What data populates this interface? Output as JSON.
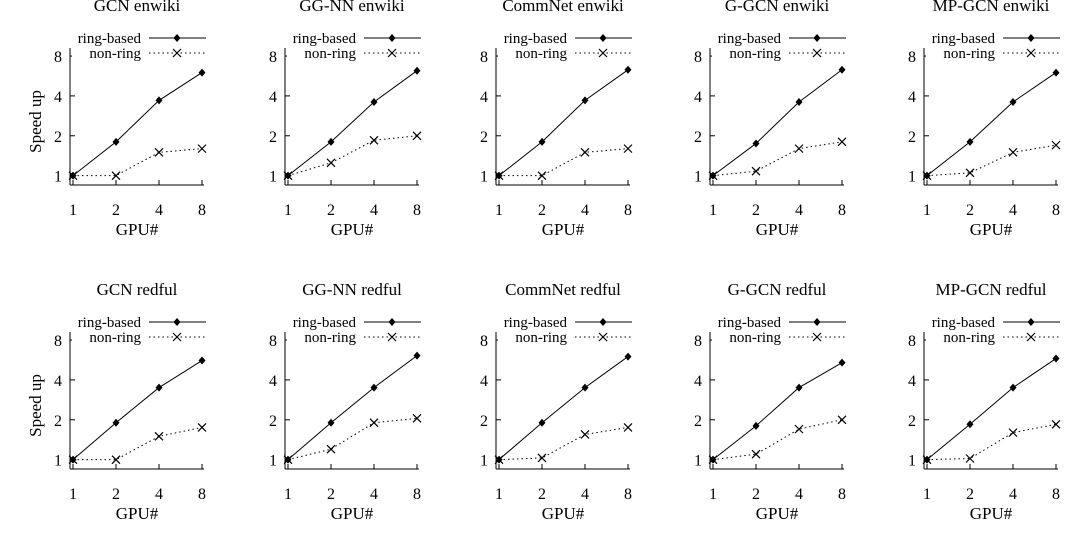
{
  "figure": {
    "ylabel": "Speed up",
    "xlabel": "GPU#",
    "legend": {
      "ring": "ring-based",
      "nonring": "non-ring"
    },
    "line_color": "#000000",
    "background": "#ffffff"
  },
  "chart_data": [
    {
      "type": "line",
      "title": "GCN enwiki",
      "xlabel": "GPU#",
      "ylabel": "Speed up",
      "y_scale": "log2",
      "x_ticks": [
        "1",
        "2",
        "4",
        "8"
      ],
      "y_ticks": [
        "1",
        "2",
        "4",
        "8"
      ],
      "ylim": [
        0.85,
        9.2
      ],
      "legend_placement": "top",
      "x": [
        1,
        2,
        4,
        8
      ],
      "series": [
        {
          "name": "ring-based",
          "marker": "diamond",
          "line": "solid",
          "values": [
            1.0,
            1.8,
            3.7,
            6.0
          ]
        },
        {
          "name": "non-ring",
          "marker": "x",
          "line": "dotted",
          "values": [
            1.0,
            1.0,
            1.5,
            1.6
          ]
        }
      ]
    },
    {
      "type": "line",
      "title": "GG-NN enwiki",
      "xlabel": "GPU#",
      "ylabel": "Speed up",
      "y_scale": "log2",
      "x_ticks": [
        "1",
        "2",
        "4",
        "8"
      ],
      "y_ticks": [
        "1",
        "2",
        "4",
        "8"
      ],
      "ylim": [
        0.85,
        9.2
      ],
      "legend_placement": "top",
      "x": [
        1,
        2,
        4,
        8
      ],
      "series": [
        {
          "name": "ring-based",
          "marker": "diamond",
          "line": "solid",
          "values": [
            1.0,
            1.8,
            3.6,
            6.2
          ]
        },
        {
          "name": "non-ring",
          "marker": "x",
          "line": "dotted",
          "values": [
            1.0,
            1.25,
            1.85,
            2.0
          ]
        }
      ]
    },
    {
      "type": "line",
      "title": "CommNet enwiki",
      "xlabel": "GPU#",
      "ylabel": "Speed up",
      "y_scale": "log2",
      "x_ticks": [
        "1",
        "2",
        "4",
        "8"
      ],
      "y_ticks": [
        "1",
        "2",
        "4",
        "8"
      ],
      "ylim": [
        0.85,
        9.2
      ],
      "legend_placement": "top",
      "x": [
        1,
        2,
        4,
        8
      ],
      "series": [
        {
          "name": "ring-based",
          "marker": "diamond",
          "line": "solid",
          "values": [
            1.0,
            1.8,
            3.7,
            6.3
          ]
        },
        {
          "name": "non-ring",
          "marker": "x",
          "line": "dotted",
          "values": [
            1.0,
            1.0,
            1.5,
            1.6
          ]
        }
      ]
    },
    {
      "type": "line",
      "title": "G-GCN enwiki",
      "xlabel": "GPU#",
      "ylabel": "Speed up",
      "y_scale": "log2",
      "x_ticks": [
        "1",
        "2",
        "4",
        "8"
      ],
      "y_ticks": [
        "1",
        "2",
        "4",
        "8"
      ],
      "ylim": [
        0.85,
        9.2
      ],
      "legend_placement": "top",
      "x": [
        1,
        2,
        4,
        8
      ],
      "series": [
        {
          "name": "ring-based",
          "marker": "diamond",
          "line": "solid",
          "values": [
            1.0,
            1.75,
            3.6,
            6.3
          ]
        },
        {
          "name": "non-ring",
          "marker": "x",
          "line": "dotted",
          "values": [
            1.0,
            1.08,
            1.6,
            1.8
          ]
        }
      ]
    },
    {
      "type": "line",
      "title": "MP-GCN enwiki",
      "xlabel": "GPU#",
      "ylabel": "Speed up",
      "y_scale": "log2",
      "x_ticks": [
        "1",
        "2",
        "4",
        "8"
      ],
      "y_ticks": [
        "1",
        "2",
        "4",
        "8"
      ],
      "ylim": [
        0.85,
        9.2
      ],
      "legend_placement": "top",
      "x": [
        1,
        2,
        4,
        8
      ],
      "series": [
        {
          "name": "ring-based",
          "marker": "diamond",
          "line": "solid",
          "values": [
            1.0,
            1.8,
            3.6,
            6.0
          ]
        },
        {
          "name": "non-ring",
          "marker": "x",
          "line": "dotted",
          "values": [
            1.0,
            1.05,
            1.5,
            1.7
          ]
        }
      ]
    },
    {
      "type": "line",
      "title": "GCN redful",
      "xlabel": "GPU#",
      "ylabel": "Speed up",
      "y_scale": "log2",
      "x_ticks": [
        "1",
        "2",
        "4",
        "8"
      ],
      "y_ticks": [
        "1",
        "2",
        "4",
        "8"
      ],
      "ylim": [
        0.85,
        9.2
      ],
      "legend_placement": "top",
      "x": [
        1,
        2,
        4,
        8
      ],
      "series": [
        {
          "name": "ring-based",
          "marker": "diamond",
          "line": "solid",
          "values": [
            1.0,
            1.9,
            3.5,
            5.6
          ]
        },
        {
          "name": "non-ring",
          "marker": "x",
          "line": "dotted",
          "values": [
            1.0,
            1.0,
            1.5,
            1.75
          ]
        }
      ]
    },
    {
      "type": "line",
      "title": "GG-NN redful",
      "xlabel": "GPU#",
      "ylabel": "Speed up",
      "y_scale": "log2",
      "x_ticks": [
        "1",
        "2",
        "4",
        "8"
      ],
      "y_ticks": [
        "1",
        "2",
        "4",
        "8"
      ],
      "ylim": [
        0.85,
        9.2
      ],
      "legend_placement": "top",
      "x": [
        1,
        2,
        4,
        8
      ],
      "series": [
        {
          "name": "ring-based",
          "marker": "diamond",
          "line": "solid",
          "values": [
            1.0,
            1.9,
            3.5,
            6.1
          ]
        },
        {
          "name": "non-ring",
          "marker": "x",
          "line": "dotted",
          "values": [
            1.0,
            1.2,
            1.9,
            2.05
          ]
        }
      ]
    },
    {
      "type": "line",
      "title": "CommNet redful",
      "xlabel": "GPU#",
      "ylabel": "Speed up",
      "y_scale": "log2",
      "x_ticks": [
        "1",
        "2",
        "4",
        "8"
      ],
      "y_ticks": [
        "1",
        "2",
        "4",
        "8"
      ],
      "ylim": [
        0.85,
        9.2
      ],
      "legend_placement": "top",
      "x": [
        1,
        2,
        4,
        8
      ],
      "series": [
        {
          "name": "ring-based",
          "marker": "diamond",
          "line": "solid",
          "values": [
            1.0,
            1.9,
            3.5,
            6.0
          ]
        },
        {
          "name": "non-ring",
          "marker": "x",
          "line": "dotted",
          "values": [
            1.0,
            1.03,
            1.55,
            1.75
          ]
        }
      ]
    },
    {
      "type": "line",
      "title": "G-GCN redful",
      "xlabel": "GPU#",
      "ylabel": "Speed up",
      "y_scale": "log2",
      "x_ticks": [
        "1",
        "2",
        "4",
        "8"
      ],
      "y_ticks": [
        "1",
        "2",
        "4",
        "8"
      ],
      "ylim": [
        0.85,
        9.2
      ],
      "legend_placement": "top",
      "x": [
        1,
        2,
        4,
        8
      ],
      "series": [
        {
          "name": "ring-based",
          "marker": "diamond",
          "line": "solid",
          "values": [
            1.0,
            1.8,
            3.5,
            5.4
          ]
        },
        {
          "name": "non-ring",
          "marker": "x",
          "line": "dotted",
          "values": [
            1.0,
            1.1,
            1.7,
            2.0
          ]
        }
      ]
    },
    {
      "type": "line",
      "title": "MP-GCN redful",
      "xlabel": "GPU#",
      "ylabel": "Speed up",
      "y_scale": "log2",
      "x_ticks": [
        "1",
        "2",
        "4",
        "8"
      ],
      "y_ticks": [
        "1",
        "2",
        "4",
        "8"
      ],
      "ylim": [
        0.85,
        9.2
      ],
      "legend_placement": "top",
      "x": [
        1,
        2,
        4,
        8
      ],
      "series": [
        {
          "name": "ring-based",
          "marker": "diamond",
          "line": "solid",
          "values": [
            1.0,
            1.85,
            3.5,
            5.8
          ]
        },
        {
          "name": "non-ring",
          "marker": "x",
          "line": "dotted",
          "values": [
            1.0,
            1.02,
            1.6,
            1.85
          ]
        }
      ]
    }
  ]
}
